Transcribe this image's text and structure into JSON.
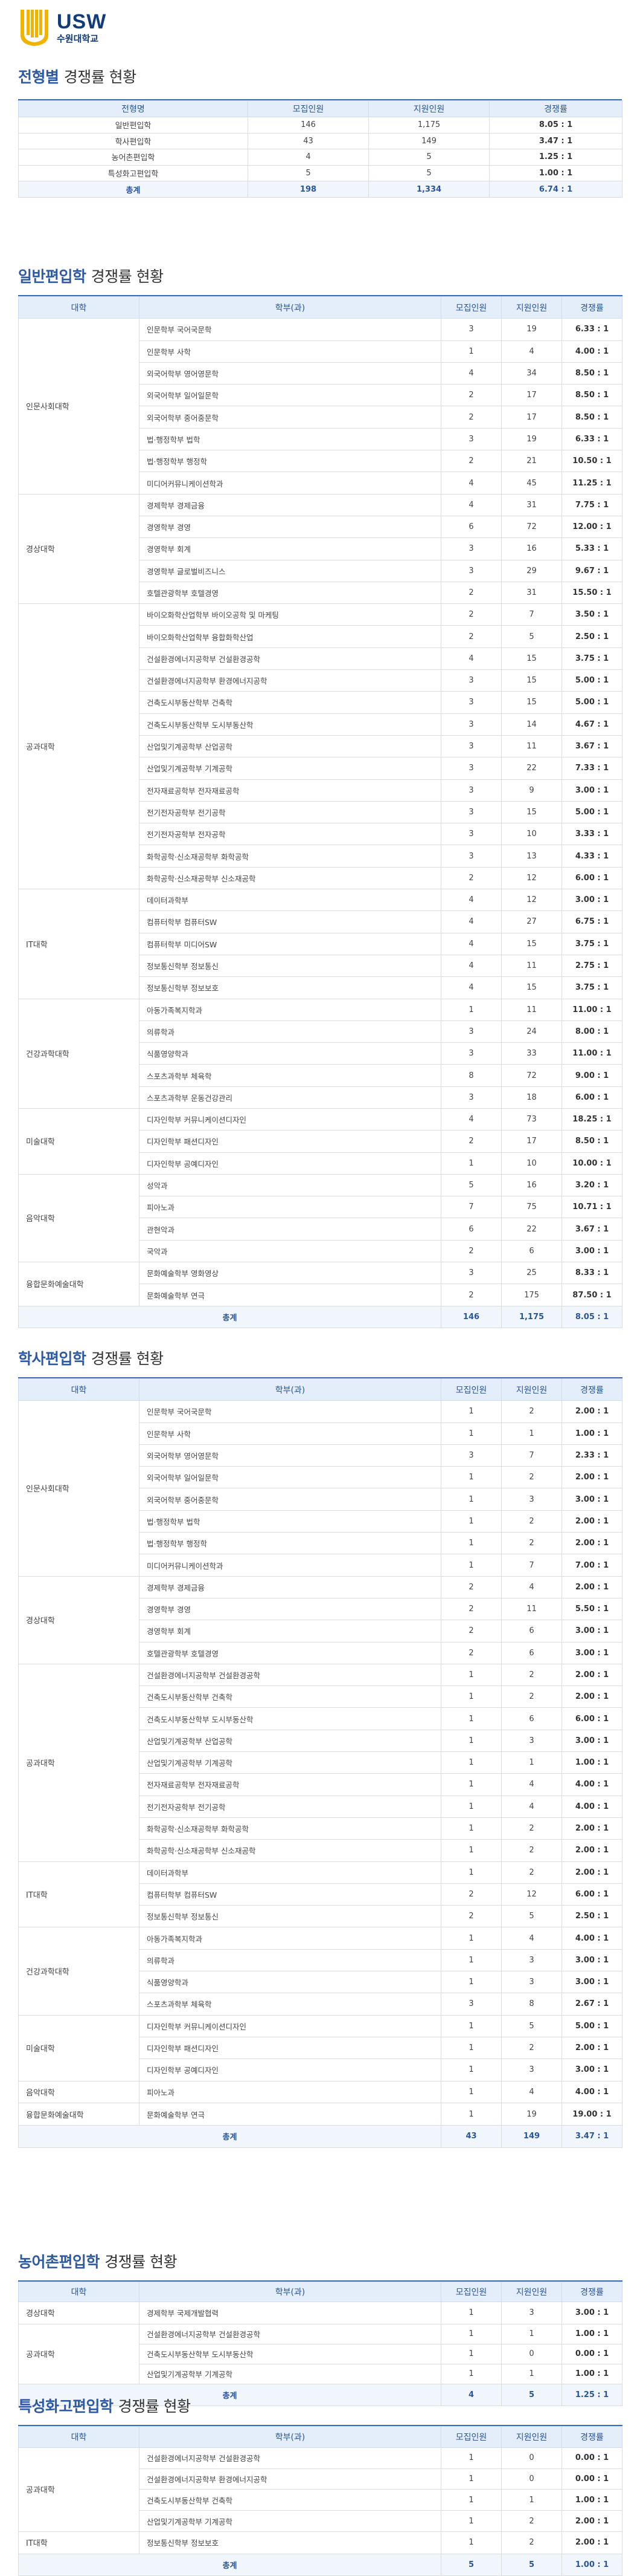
{
  "logo": {
    "en": "USW",
    "kr": "수원대학교",
    "color": "#f0b400"
  },
  "summary": {
    "title_hl": "전형별",
    "title_rest": "경쟁률 현황",
    "headers": [
      "전형명",
      "모집인원",
      "지원인원",
      "경쟁률"
    ],
    "rows": [
      [
        "일반편입학",
        "146",
        "1,175",
        "8.05 : 1"
      ],
      [
        "학사편입학",
        "43",
        "149",
        "3.47 : 1"
      ],
      [
        "농어촌편입학",
        "4",
        "5",
        "1.25 : 1"
      ],
      [
        "특성화고편입학",
        "5",
        "5",
        "1.00 : 1"
      ]
    ],
    "total": [
      "총계",
      "198",
      "1,334",
      "6.74 : 1"
    ]
  },
  "sections": [
    {
      "title_hl": "일반편입학",
      "title_rest": "경쟁률 현황",
      "headers": [
        "대학",
        "학부(과)",
        "모집인원",
        "지원인원",
        "경쟁률"
      ],
      "groups": [
        {
          "college": "인문사회대학",
          "rows": [
            [
              "인문학부 국어국문학",
              "3",
              "19",
              "6.33 : 1"
            ],
            [
              "인문학부 사학",
              "1",
              "4",
              "4.00 : 1"
            ],
            [
              "외국어학부 영어영문학",
              "4",
              "34",
              "8.50 : 1"
            ],
            [
              "외국어학부 일어일문학",
              "2",
              "17",
              "8.50 : 1"
            ],
            [
              "외국어학부 중어중문학",
              "2",
              "17",
              "8.50 : 1"
            ],
            [
              "법·행정학부 법학",
              "3",
              "19",
              "6.33 : 1"
            ],
            [
              "법·행정학부 행정학",
              "2",
              "21",
              "10.50 : 1"
            ],
            [
              "미디어커뮤니케이션학과",
              "4",
              "45",
              "11.25 : 1"
            ]
          ]
        },
        {
          "college": "경상대학",
          "rows": [
            [
              "경제학부 경제금융",
              "4",
              "31",
              "7.75 : 1"
            ],
            [
              "경영학부 경영",
              "6",
              "72",
              "12.00 : 1"
            ],
            [
              "경영학부 회계",
              "3",
              "16",
              "5.33 : 1"
            ],
            [
              "경영학부 글로벌비즈니스",
              "3",
              "29",
              "9.67 : 1"
            ],
            [
              "호텔관광학부 호텔경영",
              "2",
              "31",
              "15.50 : 1"
            ]
          ]
        },
        {
          "college": "공과대학",
          "rows": [
            [
              "바이오화학산업학부 바이오공학 및 마케팅",
              "2",
              "7",
              "3.50 : 1"
            ],
            [
              "바이오화학산업학부 융합화학산업",
              "2",
              "5",
              "2.50 : 1"
            ],
            [
              "건설환경에너지공학부 건설환경공학",
              "4",
              "15",
              "3.75 : 1"
            ],
            [
              "건설환경에너지공학부 환경에너지공학",
              "3",
              "15",
              "5.00 : 1"
            ],
            [
              "건축도시부동산학부 건축학",
              "3",
              "15",
              "5.00 : 1"
            ],
            [
              "건축도시부동산학부 도시부동산학",
              "3",
              "14",
              "4.67 : 1"
            ],
            [
              "산업및기계공학부 산업공학",
              "3",
              "11",
              "3.67 : 1"
            ],
            [
              "산업및기계공학부 기계공학",
              "3",
              "22",
              "7.33 : 1"
            ],
            [
              "전자재료공학부 전자재료공학",
              "3",
              "9",
              "3.00 : 1"
            ],
            [
              "전기전자공학부 전기공학",
              "3",
              "15",
              "5.00 : 1"
            ],
            [
              "전기전자공학부 전자공학",
              "3",
              "10",
              "3.33 : 1"
            ],
            [
              "화학공학·신소재공학부 화학공학",
              "3",
              "13",
              "4.33 : 1"
            ],
            [
              "화학공학·신소재공학부 신소재공학",
              "2",
              "12",
              "6.00 : 1"
            ]
          ]
        },
        {
          "college": "IT대학",
          "rows": [
            [
              "데이터과학부",
              "4",
              "12",
              "3.00 : 1"
            ],
            [
              "컴퓨터학부 컴퓨터SW",
              "4",
              "27",
              "6.75 : 1"
            ],
            [
              "컴퓨터학부 미디어SW",
              "4",
              "15",
              "3.75 : 1"
            ],
            [
              "정보통신학부 정보통신",
              "4",
              "11",
              "2.75 : 1"
            ],
            [
              "정보통신학부 정보보호",
              "4",
              "15",
              "3.75 : 1"
            ]
          ]
        },
        {
          "college": "건강과학대학",
          "rows": [
            [
              "아동가족복지학과",
              "1",
              "11",
              "11.00 : 1"
            ],
            [
              "의류학과",
              "3",
              "24",
              "8.00 : 1"
            ],
            [
              "식품영양학과",
              "3",
              "33",
              "11.00 : 1"
            ],
            [
              "스포츠과학부 체육학",
              "8",
              "72",
              "9.00 : 1"
            ],
            [
              "스포츠과학부 운동건강관리",
              "3",
              "18",
              "6.00 : 1"
            ]
          ]
        },
        {
          "college": "미술대학",
          "rows": [
            [
              "디자인학부 커뮤니케이션디자인",
              "4",
              "73",
              "18.25 : 1"
            ],
            [
              "디자인학부 패션디자인",
              "2",
              "17",
              "8.50 : 1"
            ],
            [
              "디자인학부 공예디자인",
              "1",
              "10",
              "10.00 : 1"
            ]
          ]
        },
        {
          "college": "음악대학",
          "rows": [
            [
              "성악과",
              "5",
              "16",
              "3.20 : 1"
            ],
            [
              "피아노과",
              "7",
              "75",
              "10.71 : 1"
            ],
            [
              "관현악과",
              "6",
              "22",
              "3.67 : 1"
            ],
            [
              "국악과",
              "2",
              "6",
              "3.00 : 1"
            ]
          ]
        },
        {
          "college": "융합문화예술대학",
          "rows": [
            [
              "문화예술학부 영화영상",
              "3",
              "25",
              "8.33 : 1"
            ],
            [
              "문화예술학부 연극",
              "2",
              "175",
              "87.50 : 1"
            ]
          ]
        }
      ],
      "total": [
        "총계",
        "146",
        "1,175",
        "8.05 : 1"
      ]
    },
    {
      "title_hl": "학사편입학",
      "title_rest": "경쟁률 현황",
      "headers": [
        "대학",
        "학부(과)",
        "모집인원",
        "지원인원",
        "경쟁률"
      ],
      "groups": [
        {
          "college": "인문사회대학",
          "rows": [
            [
              "인문학부 국어국문학",
              "1",
              "2",
              "2.00 : 1"
            ],
            [
              "인문학부 사학",
              "1",
              "1",
              "1.00 : 1"
            ],
            [
              "외국어학부 영어영문학",
              "3",
              "7",
              "2.33 : 1"
            ],
            [
              "외국어학부 일어일문학",
              "1",
              "2",
              "2.00 : 1"
            ],
            [
              "외국어학부 중어중문학",
              "1",
              "3",
              "3.00 : 1"
            ],
            [
              "법·행정학부 법학",
              "1",
              "2",
              "2.00 : 1"
            ],
            [
              "법·행정학부 행정학",
              "1",
              "2",
              "2.00 : 1"
            ],
            [
              "미디어커뮤니케이션학과",
              "1",
              "7",
              "7.00 : 1"
            ]
          ]
        },
        {
          "college": "경상대학",
          "rows": [
            [
              "경제학부 경제금융",
              "2",
              "4",
              "2.00 : 1"
            ],
            [
              "경영학부 경영",
              "2",
              "11",
              "5.50 : 1"
            ],
            [
              "경영학부 회계",
              "2",
              "6",
              "3.00 : 1"
            ],
            [
              "호텔관광학부 호텔경영",
              "2",
              "6",
              "3.00 : 1"
            ]
          ]
        },
        {
          "college": "공과대학",
          "rows": [
            [
              "건설환경에너지공학부 건설환경공학",
              "1",
              "2",
              "2.00 : 1"
            ],
            [
              "건축도시부동산학부 건축학",
              "1",
              "2",
              "2.00 : 1"
            ],
            [
              "건축도시부동산학부 도시부동산학",
              "1",
              "6",
              "6.00 : 1"
            ],
            [
              "산업및기계공학부 산업공학",
              "1",
              "3",
              "3.00 : 1"
            ],
            [
              "산업및기계공학부 기계공학",
              "1",
              "1",
              "1.00 : 1"
            ],
            [
              "전자재료공학부 전자재료공학",
              "1",
              "4",
              "4.00 : 1"
            ],
            [
              "전기전자공학부 전기공학",
              "1",
              "4",
              "4.00 : 1"
            ],
            [
              "화학공학·신소재공학부 화학공학",
              "1",
              "2",
              "2.00 : 1"
            ],
            [
              "화학공학·신소재공학부 신소재공학",
              "1",
              "2",
              "2.00 : 1"
            ]
          ]
        },
        {
          "college": "IT대학",
          "rows": [
            [
              "데이터과학부",
              "1",
              "2",
              "2.00 : 1"
            ],
            [
              "컴퓨터학부 컴퓨터SW",
              "2",
              "12",
              "6.00 : 1"
            ],
            [
              "정보통신학부 정보통신",
              "2",
              "5",
              "2.50 : 1"
            ]
          ]
        },
        {
          "college": "건강과학대학",
          "rows": [
            [
              "아동가족복지학과",
              "1",
              "4",
              "4.00 : 1"
            ],
            [
              "의류학과",
              "1",
              "3",
              "3.00 : 1"
            ],
            [
              "식품영양학과",
              "1",
              "3",
              "3.00 : 1"
            ],
            [
              "스포츠과학부 체육학",
              "3",
              "8",
              "2.67 : 1"
            ]
          ]
        },
        {
          "college": "미술대학",
          "rows": [
            [
              "디자인학부 커뮤니케이션디자인",
              "1",
              "5",
              "5.00 : 1"
            ],
            [
              "디자인학부 패션디자인",
              "1",
              "2",
              "2.00 : 1"
            ],
            [
              "디자인학부 공예디자인",
              "1",
              "3",
              "3.00 : 1"
            ]
          ]
        },
        {
          "college": "음악대학",
          "rows": [
            [
              "피아노과",
              "1",
              "4",
              "4.00 : 1"
            ]
          ]
        },
        {
          "college": "융합문화예술대학",
          "rows": [
            [
              "문화예술학부 연극",
              "1",
              "19",
              "19.00 : 1"
            ]
          ]
        }
      ],
      "total": [
        "총계",
        "43",
        "149",
        "3.47 : 1"
      ]
    },
    {
      "title_hl": "농어촌편입학",
      "title_rest": "경쟁률 현황",
      "headers": [
        "대학",
        "학부(과)",
        "모집인원",
        "지원인원",
        "경쟁률"
      ],
      "groups": [
        {
          "college": "경상대학",
          "rows": [
            [
              "경제학부 국제개발협력",
              "1",
              "3",
              "3.00 : 1"
            ]
          ]
        },
        {
          "college": "공과대학",
          "rows": [
            [
              "건설환경에너지공학부 건설환경공학",
              "1",
              "1",
              "1.00 : 1"
            ],
            [
              "건축도시부동산학부 도시부동산학",
              "1",
              "0",
              "0.00 : 1"
            ],
            [
              "산업및기계공학부 기계공학",
              "1",
              "1",
              "1.00 : 1"
            ]
          ]
        }
      ],
      "total": [
        "총계",
        "4",
        "5",
        "1.25 : 1"
      ]
    },
    {
      "title_hl": "특성화고편입학",
      "title_rest": "경쟁률 현황",
      "headers": [
        "대학",
        "학부(과)",
        "모집인원",
        "지원인원",
        "경쟁률"
      ],
      "groups": [
        {
          "college": "공과대학",
          "rows": [
            [
              "건설환경에너지공학부 건설환경공학",
              "1",
              "0",
              "0.00 : 1"
            ],
            [
              "건설환경에너지공학부 환경에너지공학",
              "1",
              "0",
              "0.00 : 1"
            ],
            [
              "건축도시부동산학부 건축학",
              "1",
              "1",
              "1.00 : 1"
            ],
            [
              "산업및기계공학부 기계공학",
              "1",
              "2",
              "2.00 : 1"
            ]
          ]
        },
        {
          "college": "IT대학",
          "rows": [
            [
              "정보통신학부 정보보호",
              "1",
              "2",
              "2.00 : 1"
            ]
          ]
        }
      ],
      "total": [
        "총계",
        "5",
        "5",
        "1.00 : 1"
      ]
    }
  ]
}
